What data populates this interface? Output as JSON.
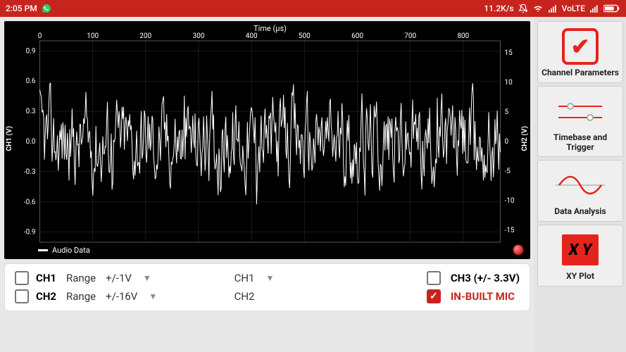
{
  "statusbar": {
    "time": "2:05 PM",
    "data_rate": "11.2K/s",
    "network_label": "VoLTE"
  },
  "chart": {
    "title": "Time   (µs)",
    "left_axis_label": "CH1    (V)",
    "right_axis_label": "CH2    (V)",
    "x_ticks": [
      0,
      100,
      200,
      300,
      400,
      500,
      600,
      700,
      800
    ],
    "y_left_ticks": [
      0.9,
      0.6,
      0.3,
      0.0,
      -0.3,
      -0.6,
      -0.9
    ],
    "y_right_ticks": [
      15,
      10,
      5,
      0,
      -5,
      -10,
      -15
    ],
    "xlim": [
      0,
      870
    ],
    "ylim_left": [
      -1.0,
      1.0
    ],
    "ylim_right": [
      -17,
      17
    ],
    "legend": "Audio Data",
    "background_color": "#000000",
    "grid_color": "#555555",
    "text_color": "#ffffff",
    "series_color": "#ffffff",
    "record_indicator_color": "#c7241e",
    "axis_fontsize": 10,
    "title_fontsize": 11,
    "noise_series_amplitude": 0.35,
    "noise_series_points": 600
  },
  "controls": {
    "ch1": {
      "checked": false,
      "label": "CH1",
      "sub": "Range",
      "value": "+/-1V",
      "select": "CH1"
    },
    "ch2": {
      "checked": false,
      "label": "CH2",
      "sub": "Range",
      "value": "+/-16V",
      "select": "CH2"
    },
    "ch3": {
      "checked": false,
      "label": "CH3 (+/- 3.3V)"
    },
    "mic": {
      "checked": true,
      "label": "IN-BUILT MIC"
    }
  },
  "sidebar": {
    "items": [
      {
        "id": "channel-params",
        "label": "Channel Parameters"
      },
      {
        "id": "timebase-trigger",
        "label": "Timebase and Trigger"
      },
      {
        "id": "data-analysis",
        "label": "Data Analysis"
      },
      {
        "id": "xy-plot",
        "label": "XY Plot",
        "xy_text": "X Y"
      }
    ]
  },
  "colors": {
    "accent": "#c7241e",
    "accent_bright": "#e5241d",
    "panel_bg": "#ffffff",
    "sidebar_bg": "#e3e3e3"
  }
}
